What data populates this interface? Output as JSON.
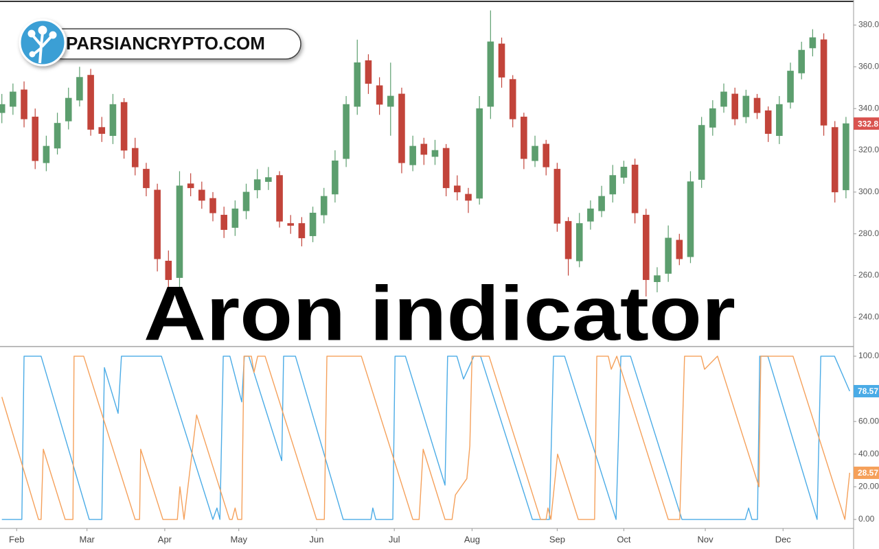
{
  "logo": {
    "text": "PARSIANCRYPTO.COM"
  },
  "chart_data": [
    {
      "type": "candlestick",
      "title": "Aron indicator",
      "up_color": "#5c9e6e",
      "down_color": "#c2443a",
      "last_badge_color": "#d9534f",
      "xlim": [
        -0.5,
        229.5
      ],
      "ylim": [
        226,
        392
      ],
      "yticks": [
        {
          "value": 240,
          "label": "240.00"
        },
        {
          "value": 260,
          "label": "260.00"
        },
        {
          "value": 280,
          "label": "280.00"
        },
        {
          "value": 300,
          "label": "300.00"
        },
        {
          "value": 320,
          "label": "320.00"
        },
        {
          "value": 340,
          "label": "340.00"
        },
        {
          "value": 360,
          "label": "360.00"
        },
        {
          "value": 380,
          "label": "380.00"
        }
      ],
      "x": [
        0,
        3,
        6,
        9,
        12,
        15,
        18,
        21,
        24,
        27,
        30,
        33,
        36,
        39,
        42,
        45,
        48,
        51,
        54,
        57,
        60,
        63,
        66,
        69,
        72,
        75,
        78,
        81,
        84,
        87,
        90,
        93,
        96,
        99,
        102,
        105,
        108,
        111,
        114,
        117,
        120,
        123,
        126,
        129,
        132,
        135,
        138,
        141,
        144,
        147,
        150,
        153,
        156,
        159,
        162,
        165,
        168,
        171,
        174,
        177,
        180,
        183,
        186,
        189,
        192,
        195,
        198,
        201,
        204,
        207,
        210,
        213,
        216,
        219,
        222,
        225,
        228
      ],
      "open": [
        338,
        341,
        349,
        336,
        314,
        321,
        334,
        344,
        356,
        331,
        327,
        343,
        321,
        311,
        301,
        267,
        259,
        304,
        301,
        297,
        289,
        283,
        291,
        301,
        305,
        308,
        285,
        285,
        279,
        289,
        299,
        316,
        341,
        363,
        351,
        341,
        347,
        313,
        323,
        317,
        321,
        303,
        299,
        297,
        341,
        371,
        354,
        336,
        315,
        323,
        311,
        286,
        267,
        286,
        291,
        299,
        307,
        313,
        289,
        257,
        261,
        277,
        269,
        306,
        331,
        341,
        347,
        336,
        345,
        339,
        327,
        343,
        357,
        369,
        373,
        331,
        301
      ],
      "high": [
        347,
        352,
        353,
        340,
        327,
        338,
        350,
        360,
        359,
        336,
        347,
        345,
        326,
        314,
        304,
        272,
        310,
        309,
        305,
        300,
        293,
        296,
        304,
        311,
        312,
        310,
        289,
        288,
        293,
        302,
        320,
        346,
        373,
        366,
        355,
        362,
        350,
        327,
        326,
        325,
        323,
        308,
        302,
        346,
        387,
        374,
        356,
        338,
        327,
        325,
        314,
        288,
        290,
        296,
        303,
        313,
        315,
        316,
        292,
        264,
        284,
        280,
        310,
        336,
        344,
        352,
        350,
        349,
        347,
        341,
        346,
        362,
        372,
        378,
        376,
        334,
        336
      ],
      "low": [
        333,
        337,
        331,
        311,
        310,
        318,
        330,
        341,
        327,
        324,
        323,
        316,
        308,
        298,
        262,
        249,
        253,
        298,
        292,
        286,
        278,
        279,
        287,
        297,
        301,
        283,
        280,
        274,
        276,
        285,
        295,
        312,
        337,
        347,
        337,
        327,
        309,
        310,
        313,
        313,
        298,
        296,
        290,
        294,
        335,
        350,
        331,
        311,
        312,
        308,
        281,
        260,
        264,
        282,
        288,
        295,
        304,
        285,
        250,
        252,
        257,
        265,
        266,
        302,
        327,
        338,
        332,
        333,
        335,
        324,
        323,
        340,
        354,
        365,
        327,
        295,
        297
      ],
      "close": [
        342,
        348,
        335,
        315,
        322,
        333,
        345,
        355,
        330,
        328,
        342,
        320,
        312,
        302,
        268,
        258,
        303,
        302,
        296,
        290,
        282,
        292,
        300,
        306,
        307,
        286,
        284,
        278,
        290,
        298,
        315,
        342,
        362,
        352,
        342,
        346,
        314,
        322,
        318,
        320,
        302,
        300,
        296,
        340,
        372,
        355,
        335,
        316,
        322,
        312,
        285,
        268,
        285,
        292,
        298,
        308,
        312,
        290,
        258,
        260,
        278,
        268,
        305,
        332,
        340,
        348,
        335,
        346,
        338,
        328,
        342,
        358,
        368,
        374,
        332,
        300,
        332.8
      ]
    },
    {
      "type": "line",
      "xlim": [
        -0.5,
        229.5
      ],
      "ylim": [
        -5.5,
        105.9
      ],
      "xticks": [
        {
          "value": 4,
          "label": "Feb"
        },
        {
          "value": 23,
          "label": "Mar"
        },
        {
          "value": 44,
          "label": "Apr"
        },
        {
          "value": 64,
          "label": "May"
        },
        {
          "value": 85,
          "label": "Jun"
        },
        {
          "value": 106,
          "label": "Jul"
        },
        {
          "value": 127,
          "label": "Aug"
        },
        {
          "value": 150,
          "label": "Sep"
        },
        {
          "value": 168,
          "label": "Oct"
        },
        {
          "value": 190,
          "label": "Nov"
        },
        {
          "value": 211,
          "label": "Dec"
        }
      ],
      "yticks": [
        {
          "value": 0,
          "label": "0.00"
        },
        {
          "value": 20,
          "label": "20.00"
        },
        {
          "value": 40,
          "label": "40.00"
        },
        {
          "value": 60,
          "label": "60.00"
        },
        {
          "value": 80,
          "label": "80.00"
        },
        {
          "value": 100,
          "label": "100.00"
        }
      ],
      "series": [
        {
          "color": "#4aabe6",
          "x": [
            0,
            5.4,
            6,
            10.6,
            23.6,
            27,
            27.7,
            31.4,
            32.3,
            43.1,
            57,
            58.1,
            58.9,
            59.8,
            61.6,
            64.8,
            65.5,
            66.7,
            75.6,
            76.1,
            79.3,
            92.2,
            99.7,
            100.2,
            101,
            105.6,
            106.2,
            109,
            119.7,
            120.4,
            122.9,
            124.7,
            127.5,
            129.3,
            143.3,
            147.9,
            149,
            152,
            165.9,
            167.2,
            169.8,
            183.7,
            200.8,
            201.7,
            202.6,
            204.1,
            204.7,
            206.9,
            220.2,
            221.2,
            224.9,
            229
          ],
          "values": [
            0,
            0,
            100,
            100,
            0,
            0,
            93,
            65,
            100,
            100,
            0,
            7,
            0,
            100,
            100,
            72,
            100,
            100,
            36,
            100,
            100,
            0,
            0,
            7,
            0,
            0,
            100,
            100,
            21,
            100,
            100,
            86,
            100,
            100,
            0,
            0,
            100,
            100,
            0,
            100,
            100,
            0,
            0,
            7,
            0,
            0,
            100,
            100,
            0,
            100,
            100,
            78.57
          ]
        },
        {
          "color": "#f5a05a",
          "x": [
            0,
            9.9,
            10.6,
            11.2,
            17.1,
            19.2,
            19.5,
            22.1,
            36,
            37.2,
            37.5,
            43.5,
            47.4,
            48.1,
            49.2,
            52.6,
            61.5,
            62.2,
            63,
            63.7,
            64.8,
            65.4,
            67.4,
            68.1,
            69.1,
            71.1,
            85,
            87.1,
            87.8,
            97.1,
            111,
            112.7,
            113.8,
            119.7,
            121.6,
            122.5,
            125.6,
            126.4,
            127,
            131.6,
            145.5,
            147,
            147.5,
            148.3,
            150.1,
            155.7,
            160.1,
            160.7,
            163.8,
            164.6,
            166.1,
            180,
            183.1,
            184.4,
            188.9,
            189.8,
            193.3,
            204.5,
            205,
            213.7,
            227.7,
            229
          ],
          "values": [
            75,
            0,
            0,
            43,
            0,
            0,
            100,
            100,
            0,
            0,
            43,
            0,
            0,
            20,
            0,
            64,
            0,
            0,
            7,
            0,
            0,
            100,
            100,
            90,
            100,
            100,
            0,
            0,
            100,
            100,
            0,
            0,
            43,
            0,
            0,
            15,
            25,
            45,
            100,
            100,
            0,
            0,
            7,
            0,
            40,
            0,
            0,
            100,
            100,
            92,
            100,
            0,
            0,
            100,
            100,
            92,
            100,
            20,
            100,
            100,
            0,
            28.57
          ]
        }
      ]
    }
  ]
}
